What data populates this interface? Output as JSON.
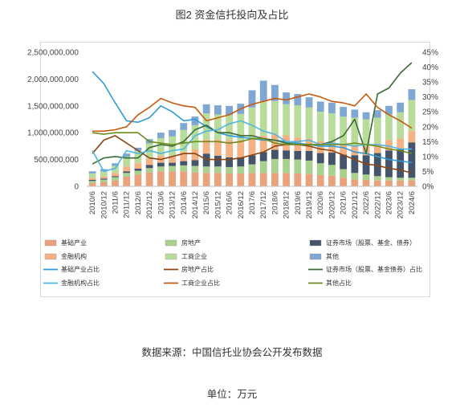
{
  "title": "图2 资金信托投向及占比",
  "source_note": "数据来源：中国信托业协会公开发布数据",
  "unit_note": "单位：万元",
  "chart_data": {
    "type": "bar",
    "stacked": true,
    "categories": [
      "2010/6",
      "2010/12",
      "2011/6",
      "2011/12",
      "2012/6",
      "2012/12",
      "2013/6",
      "2013/12",
      "2014/6",
      "2014/12",
      "2015/6",
      "2015/12",
      "2016/6",
      "2016/12",
      "2017/6",
      "2017/12",
      "2018/6",
      "2018/12",
      "2019/6",
      "2019/12",
      "2020/6",
      "2020/12",
      "2021/6",
      "2021/12",
      "2022/6",
      "2022/12",
      "2023/6",
      "2023/12",
      "2024/6"
    ],
    "category_labels_shown": [
      "2010/6",
      "2010/12",
      "2011/6",
      "2011/12",
      "2012/6",
      "2012/12",
      "2013/6",
      "2013/12",
      "2014/6",
      "2014/12",
      "2015/6",
      "2015/12",
      "2016/6",
      "2016/12",
      "2017/6",
      "2017/12",
      "2018/6",
      "2018/12",
      "2019/6",
      "2019/12",
      "2020/6",
      "2020/12",
      "2021/6",
      "2021/12",
      "2022/6",
      "2022/12",
      "2023/6",
      "2023/12",
      "2024/6"
    ],
    "ylim": [
      0,
      2500000000
    ],
    "y_ticks": [
      "0",
      "500,000,000",
      "1,000,000,000",
      "1,500,000,000",
      "2,000,000,000",
      "2,500,000,000"
    ],
    "y2lim": [
      0,
      45
    ],
    "y2_ticks": [
      "0%",
      "5%",
      "10%",
      "15%",
      "20%",
      "25%",
      "30%",
      "35%",
      "40%",
      "45%"
    ],
    "bar_series": [
      {
        "name": "基础产业",
        "color": "#e9a27c",
        "values": [
          60000000,
          75000000,
          110000000,
          180000000,
          220000000,
          260000000,
          280000000,
          280000000,
          280000000,
          260000000,
          250000000,
          250000000,
          240000000,
          240000000,
          250000000,
          250000000,
          250000000,
          250000000,
          240000000,
          230000000,
          210000000,
          200000000,
          160000000,
          130000000,
          120000000,
          110000000,
          110000000,
          110000000,
          110000000
        ]
      },
      {
        "name": "房地产",
        "color": "#a9d18e",
        "values": [
          40000000,
          50000000,
          60000000,
          70000000,
          70000000,
          80000000,
          90000000,
          100000000,
          110000000,
          120000000,
          120000000,
          120000000,
          120000000,
          130000000,
          160000000,
          220000000,
          260000000,
          260000000,
          260000000,
          250000000,
          220000000,
          200000000,
          160000000,
          120000000,
          100000000,
          80000000,
          60000000,
          50000000,
          50000000
        ]
      },
      {
        "name": "证券市场（股票、基金、债券）",
        "color": "#44546a",
        "values": [
          20000000,
          20000000,
          20000000,
          30000000,
          40000000,
          60000000,
          70000000,
          60000000,
          80000000,
          110000000,
          240000000,
          200000000,
          180000000,
          170000000,
          170000000,
          170000000,
          170000000,
          160000000,
          160000000,
          180000000,
          190000000,
          230000000,
          270000000,
          330000000,
          360000000,
          430000000,
          500000000,
          530000000,
          660000000
        ]
      },
      {
        "name": "金融机构",
        "color": "#f4b183",
        "values": [
          40000000,
          40000000,
          60000000,
          90000000,
          100000000,
          110000000,
          130000000,
          130000000,
          170000000,
          200000000,
          260000000,
          300000000,
          320000000,
          320000000,
          310000000,
          300000000,
          290000000,
          280000000,
          250000000,
          230000000,
          220000000,
          200000000,
          180000000,
          170000000,
          170000000,
          170000000,
          190000000,
          200000000,
          210000000
        ]
      },
      {
        "name": "工商企业",
        "color": "#b9dc9b",
        "values": [
          80000000,
          95000000,
          130000000,
          180000000,
          230000000,
          290000000,
          330000000,
          360000000,
          410000000,
          450000000,
          490000000,
          470000000,
          470000000,
          490000000,
          580000000,
          650000000,
          620000000,
          580000000,
          600000000,
          580000000,
          550000000,
          530000000,
          530000000,
          530000000,
          500000000,
          490000000,
          480000000,
          490000000,
          580000000
        ]
      },
      {
        "name": "其他",
        "color": "#7fa7d1",
        "values": [
          40000000,
          40000000,
          50000000,
          60000000,
          60000000,
          80000000,
          100000000,
          120000000,
          130000000,
          160000000,
          170000000,
          170000000,
          170000000,
          190000000,
          320000000,
          380000000,
          300000000,
          220000000,
          210000000,
          190000000,
          190000000,
          200000000,
          180000000,
          150000000,
          130000000,
          140000000,
          160000000,
          180000000,
          200000000
        ]
      }
    ],
    "line_series": [
      {
        "name": "基础产业占比",
        "color": "#2e9bd6",
        "values": [
          38.5,
          34.5,
          28,
          22,
          21.5,
          23,
          27,
          25,
          22,
          22.5,
          20,
          18,
          17,
          16.5,
          16,
          15.5,
          15.5,
          15,
          14.5,
          14,
          13.5,
          13.5,
          13,
          11.5,
          11,
          10,
          9,
          8.5,
          8
        ]
      },
      {
        "name": "房地产占比",
        "color": "#8b4513",
        "values": [
          11,
          15.5,
          17,
          14.5,
          12,
          9.5,
          9,
          10,
          11,
          11,
          9,
          9,
          9,
          9.5,
          10.5,
          11.5,
          13.5,
          14,
          14,
          13.5,
          12.5,
          12,
          10.5,
          9,
          7.5,
          7,
          6,
          5.5,
          4.5
        ]
      },
      {
        "name": "证券市场（股票、基金债券）占比",
        "color": "#3a6b35",
        "values": [
          7.5,
          9.5,
          10,
          9.5,
          9.5,
          13,
          14,
          13.5,
          15,
          19,
          20.5,
          18,
          18,
          17,
          17,
          16,
          15.5,
          14.5,
          14,
          14,
          14,
          15,
          17,
          22.5,
          11,
          31,
          33,
          38,
          41.5
        ]
      },
      {
        "name": "金融机构占比",
        "color": "#4fb6e2",
        "values": [
          12,
          5,
          6,
          12,
          11,
          12,
          11,
          12,
          12.5,
          17,
          18.5,
          19,
          21,
          22,
          20.5,
          18.5,
          17.5,
          15,
          15,
          15.5,
          14,
          14.5,
          14,
          13.5,
          14,
          14,
          13.5,
          12.5,
          12.5
        ]
      },
      {
        "name": "工商企业占比",
        "color": "#c55a11",
        "values": [
          18.5,
          18.5,
          19,
          20,
          24,
          26.5,
          29.5,
          28,
          27,
          26.5,
          22,
          23,
          24,
          26,
          27.5,
          28.5,
          29.5,
          29,
          30,
          31,
          30,
          28.5,
          28,
          27,
          31,
          26.5,
          24,
          22,
          19.5
        ]
      },
      {
        "name": "其他占比",
        "color": "#6f8c1d",
        "values": [
          18,
          17.5,
          18,
          18,
          18,
          15,
          14.5,
          14,
          14.5,
          15,
          15,
          15,
          14.5,
          15,
          16,
          16,
          14.5,
          14,
          14,
          14,
          14,
          14,
          14,
          14.5,
          14,
          13.5,
          12.5,
          12,
          11
        ]
      }
    ],
    "legend_order": [
      "基础产业",
      "房地产",
      "证券市场（股票、基金、债券）",
      "金融机构",
      "工商企业",
      "其他",
      "基础产业占比",
      "房地产占比",
      "证券市场（股票、基金债券）占比",
      "金融机构占比",
      "工商企业占比",
      "其他占比"
    ],
    "legend_position": "bottom",
    "grid": false
  }
}
